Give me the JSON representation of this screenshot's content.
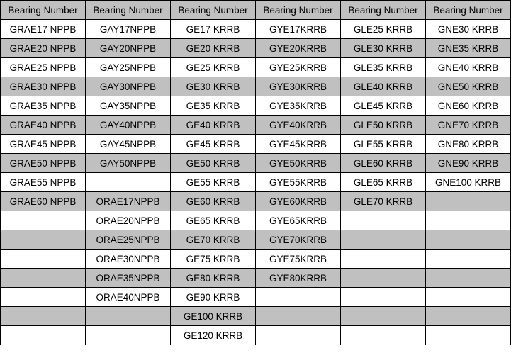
{
  "table": {
    "header": [
      "Bearing Number",
      "Bearing Number",
      "Bearing Number",
      "Bearing Number",
      "Bearing Number",
      "Bearing Number"
    ],
    "rows": [
      [
        "GRAE17 NPPB",
        "GAY17NPPB",
        "GE17 KRRB",
        "GYE17KRRB",
        "GLE25 KRRB",
        "GNE30 KRRB"
      ],
      [
        "GRAE20 NPPB",
        "GAY20NPPB",
        "GE20 KRRB",
        "GYE20KRRB",
        "GLE30 KRRB",
        "GNE35 KRRB"
      ],
      [
        "GRAE25 NPPB",
        "GAY25NPPB",
        "GE25 KRRB",
        "GYE25KRRB",
        "GLE35 KRRB",
        "GNE40 KRRB"
      ],
      [
        "GRAE30 NPPB",
        "GAY30NPPB",
        "GE30 KRRB",
        "GYE30KRRB",
        "GLE40 KRRB",
        "GNE50 KRRB"
      ],
      [
        "GRAE35 NPPB",
        "GAY35NPPB",
        "GE35 KRRB",
        "GYE35KRRB",
        "GLE45 KRRB",
        "GNE60 KRRB"
      ],
      [
        "GRAE40 NPPB",
        "GAY40NPPB",
        "GE40 KRRB",
        "GYE40KRRB",
        "GLE50 KRRB",
        "GNE70 KRRB"
      ],
      [
        "GRAE45 NPPB",
        "GAY45NPPB",
        "GE45 KRRB",
        "GYE45KRRB",
        "GLE55 KRRB",
        "GNE80 KRRB"
      ],
      [
        "GRAE50 NPPB",
        "GAY50NPPB",
        "GE50 KRRB",
        "GYE50KRRB",
        "GLE60 KRRB",
        "GNE90 KRRB"
      ],
      [
        "GRAE55 NPPB",
        null,
        "GE55 KRRB",
        "GYE55KRRB",
        "GLE65 KRRB",
        "GNE100 KRRB"
      ],
      [
        "GRAE60 NPPB",
        "ORAE17NPPB",
        "GE60 KRRB",
        "GYE60KRRB",
        "GLE70 KRRB",
        null
      ],
      [
        null,
        "ORAE20NPPB",
        "GE65 KRRB",
        "GYE65KRRB",
        null,
        null
      ],
      [
        null,
        "ORAE25NPPB",
        "GE70 KRRB",
        "GYE70KRRB",
        null,
        null
      ],
      [
        null,
        "ORAE30NPPB",
        "GE75 KRRB",
        "GYE75KRRB",
        null,
        null
      ],
      [
        null,
        "ORAE35NPPB",
        "GE80 KRRB",
        "GYE80KRRB",
        null,
        null
      ],
      [
        null,
        "ORAE40NPPB",
        "GE90 KRRB",
        null,
        null,
        null
      ],
      [
        null,
        null,
        "GE100 KRRB",
        null,
        null,
        null
      ],
      [
        null,
        null,
        "GE120 KRRB",
        null,
        null,
        null
      ]
    ]
  }
}
